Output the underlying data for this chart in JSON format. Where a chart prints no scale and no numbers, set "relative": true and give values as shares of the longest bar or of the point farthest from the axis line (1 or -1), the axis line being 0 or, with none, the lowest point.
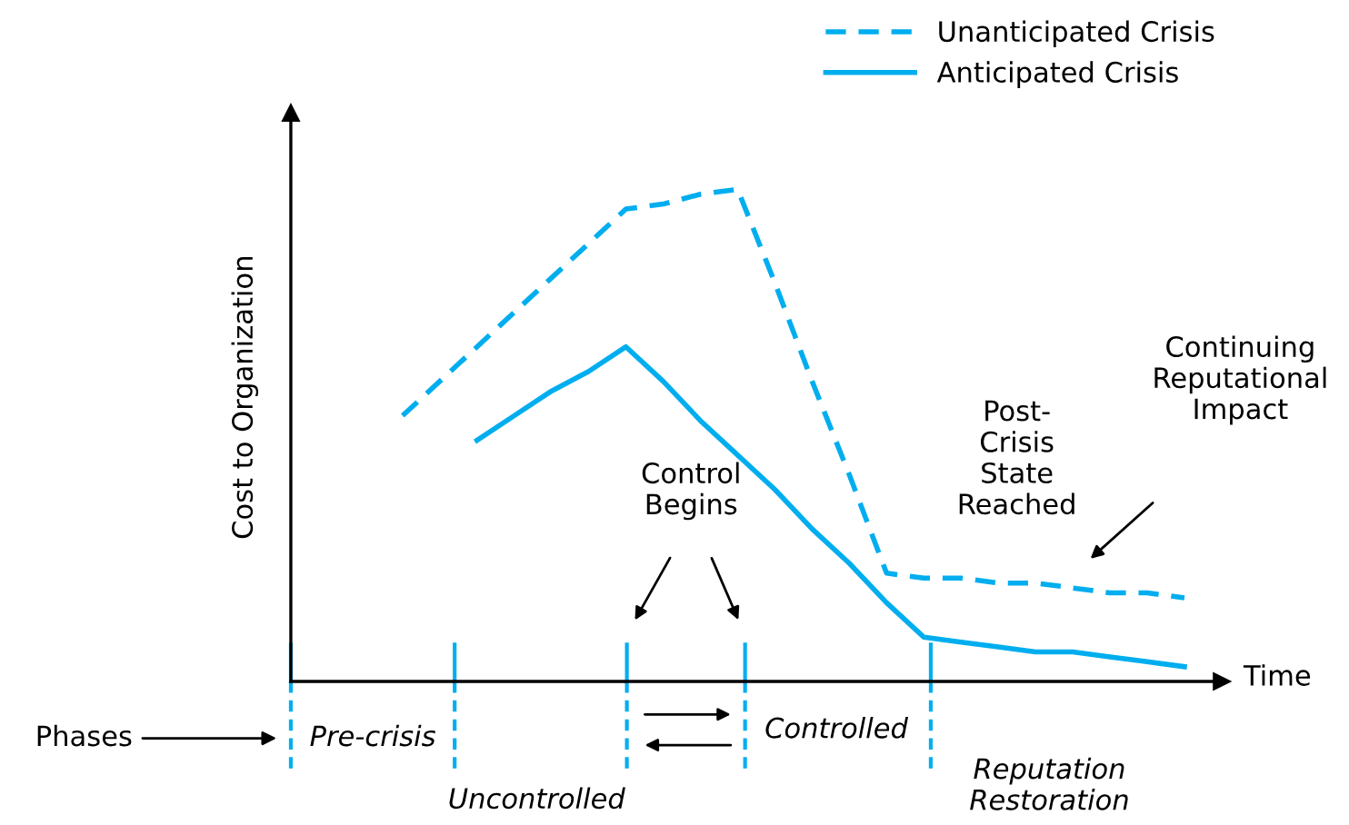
{
  "chart_data": {
    "type": "line",
    "relative": true,
    "xlabel": "Time",
    "ylabel": "Cost to Organization",
    "legend": "top right",
    "categories": [
      null,
      null,
      null,
      null,
      null,
      null,
      null,
      null,
      null,
      null,
      null,
      null,
      null,
      null,
      null,
      null,
      null,
      null,
      null,
      null,
      null,
      null,
      null,
      null,
      null,
      null
    ],
    "series": [
      {
        "name": "Unanticipated Crisis",
        "color": "#00aeef",
        "line_style": "dashed",
        "values": [
          null,
          null,
          null,
          0.54,
          0.61,
          0.68,
          0.75,
          0.82,
          0.89,
          0.96,
          0.97,
          0.99,
          1.0,
          0.81,
          0.61,
          0.42,
          0.22,
          0.21,
          0.21,
          0.2,
          0.2,
          0.19,
          0.18,
          0.18,
          0.17,
          null
        ]
      },
      {
        "name": "Anticipated Crisis",
        "color": "#00aeef",
        "line_style": "solid",
        "values": [
          null,
          null,
          null,
          null,
          null,
          0.49,
          0.54,
          0.59,
          0.63,
          0.68,
          0.61,
          0.53,
          0.46,
          0.39,
          0.31,
          0.24,
          0.16,
          0.09,
          0.08,
          0.07,
          0.06,
          0.06,
          0.05,
          0.04,
          0.03,
          null
        ]
      }
    ],
    "annotations": [
      "Phases",
      "Control\nBegins",
      "Post-\nCrisis\nState\nReached",
      "Continuing\nReputational\nImpact",
      "Pre-crisis",
      "Uncontrolled",
      "Controlled",
      "Reputation\nRestoration"
    ]
  }
}
